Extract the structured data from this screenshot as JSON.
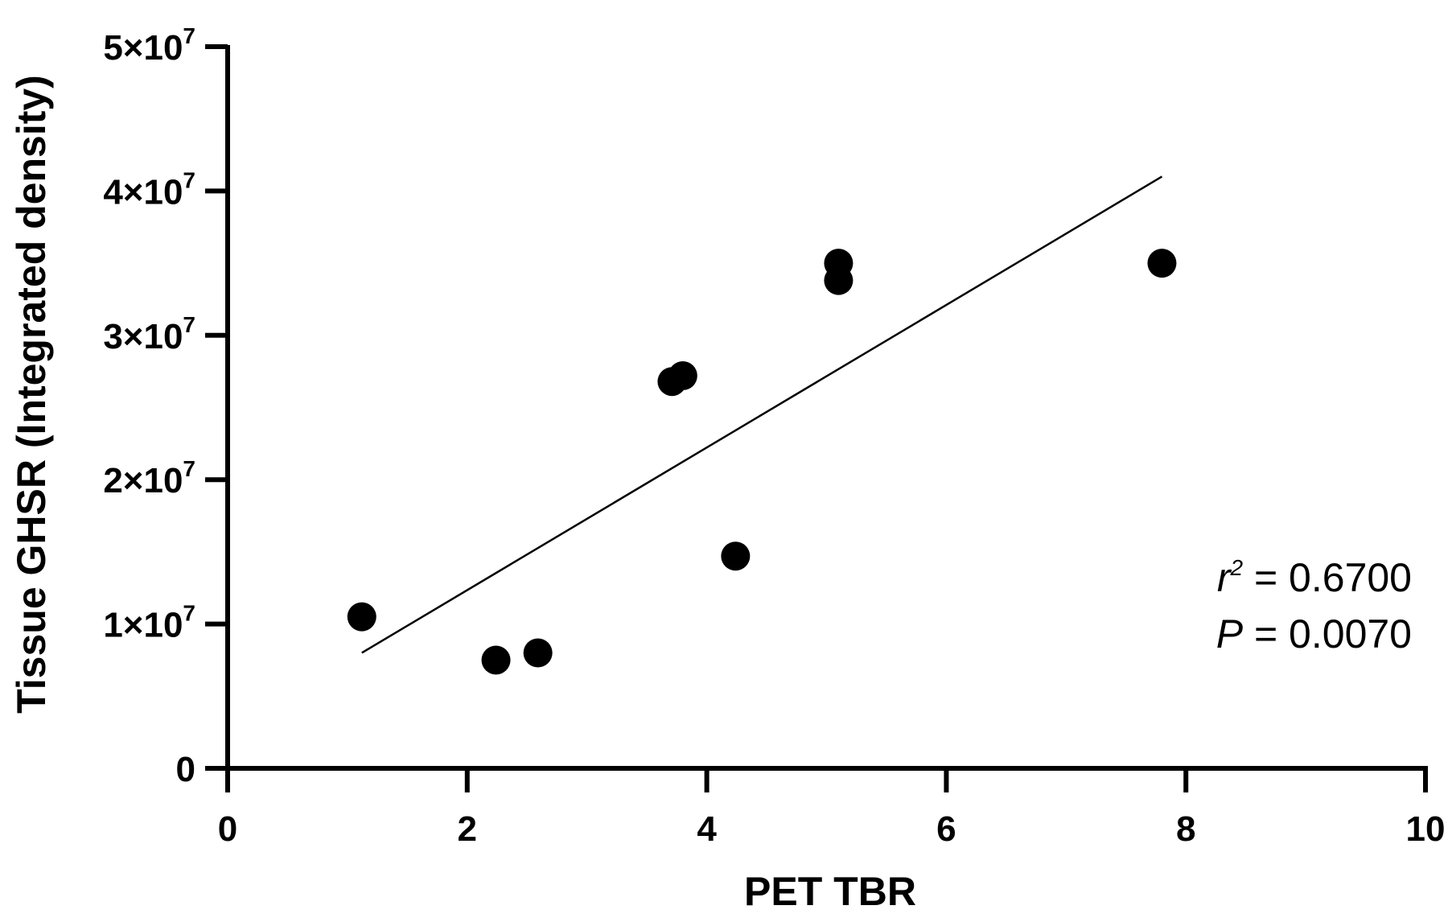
{
  "chart_data": {
    "type": "scatter",
    "xlabel": "PET TBR",
    "ylabel": "Tissue GHSR (Integrated density)",
    "xlim": [
      0,
      10
    ],
    "ylim": [
      0,
      50000000
    ],
    "x_ticks": [
      {
        "value": 0,
        "label": "0"
      },
      {
        "value": 2,
        "label": "2"
      },
      {
        "value": 4,
        "label": "4"
      },
      {
        "value": 6,
        "label": "6"
      },
      {
        "value": 8,
        "label": "8"
      },
      {
        "value": 10,
        "label": "10"
      }
    ],
    "y_ticks": [
      {
        "value": 0,
        "mantissa": "0",
        "exp": ""
      },
      {
        "value": 10000000,
        "mantissa": "1×10",
        "exp": "7"
      },
      {
        "value": 20000000,
        "mantissa": "2×10",
        "exp": "7"
      },
      {
        "value": 30000000,
        "mantissa": "3×10",
        "exp": "7"
      },
      {
        "value": 40000000,
        "mantissa": "4×10",
        "exp": "7"
      },
      {
        "value": 50000000,
        "mantissa": "5×10",
        "exp": "7"
      }
    ],
    "points": [
      {
        "x": 1.12,
        "y": 10500000
      },
      {
        "x": 2.24,
        "y": 7500000
      },
      {
        "x": 2.59,
        "y": 8000000
      },
      {
        "x": 3.71,
        "y": 26800000
      },
      {
        "x": 3.8,
        "y": 27200000
      },
      {
        "x": 4.24,
        "y": 14700000
      },
      {
        "x": 5.1,
        "y": 35000000
      },
      {
        "x": 5.1,
        "y": 33800000
      },
      {
        "x": 7.8,
        "y": 35000000
      }
    ],
    "fit_line": {
      "x": [
        1.12,
        7.8
      ],
      "y": [
        8000000,
        41000000
      ]
    },
    "annotations": {
      "r2_symbol": "r",
      "r2_exp": "2",
      "r2_value": " = 0.6700",
      "p_symbol": "P",
      "p_value": " = 0.0070"
    },
    "grid": false,
    "legend": "none",
    "colors": {
      "points": "#000000",
      "line": "#000000",
      "axes": "#000000"
    }
  }
}
